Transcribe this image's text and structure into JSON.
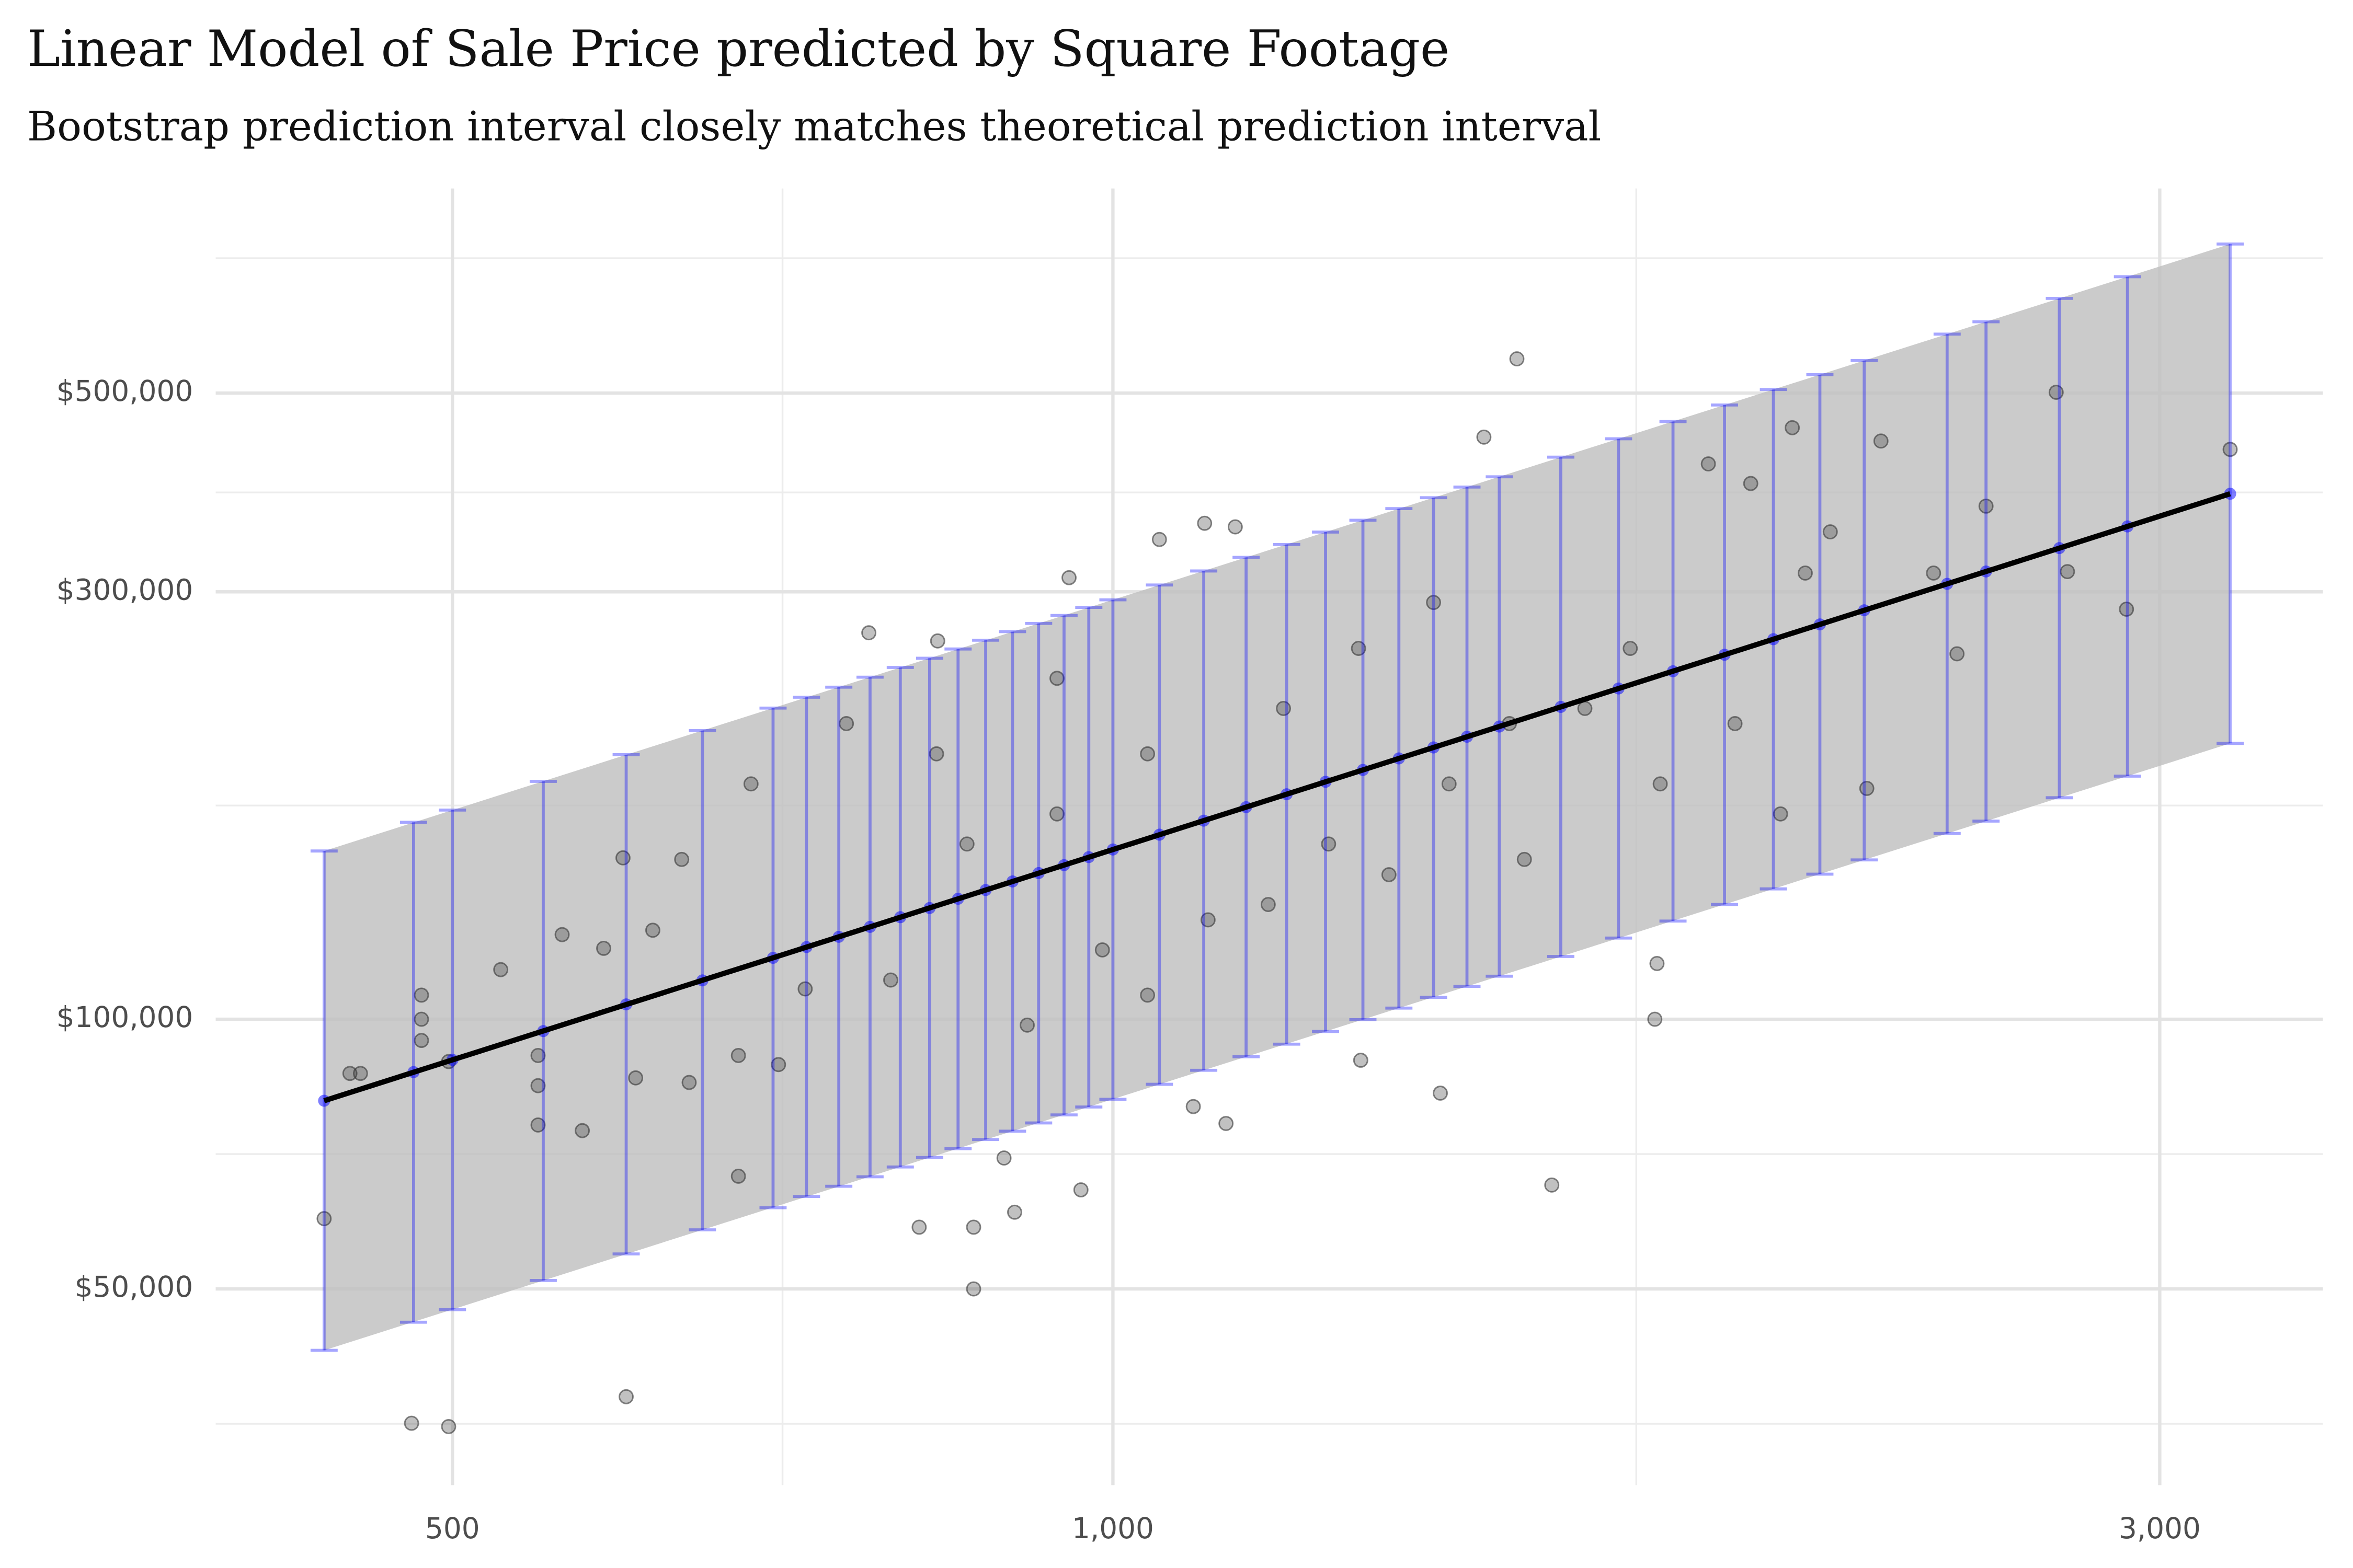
{
  "chart_data": {
    "type": "scatter",
    "title": "Linear Model of Sale Price predicted by Square Footage",
    "subtitle": "Bootstrap prediction interval closely matches theoretical prediction interval",
    "xscale": "log",
    "yscale": "log",
    "grid": true,
    "xlim": [
      390,
      3560
    ],
    "ylim": [
      30200,
      846000
    ],
    "xticks": [
      500,
      {
        "value": 1000,
        "label": "1,000"
      },
      {
        "value": 3000,
        "label": "3,000"
      }
    ],
    "yticks": [
      {
        "value": 50000,
        "label": "$50,000"
      },
      {
        "value": 100000,
        "label": "$100,000"
      },
      {
        "value": 300000,
        "label": "$300,000"
      },
      {
        "value": 500000,
        "label": "$500,000"
      }
    ],
    "xminor": [
      707,
      1732
    ],
    "yminor": [
      35355,
      70711,
      173205,
      387298,
      707107
    ],
    "prediction_band": {
      "color": "#bebebe",
      "x": [
        437,
        3230
      ],
      "lower": [
        42700,
        203200
      ],
      "upper": [
        154100,
        733400
      ]
    },
    "points": {
      "color": "#333333",
      "x": [
        437,
        449,
        454,
        484,
        484,
        484,
        498,
        479,
        498,
        526,
        547,
        547,
        547,
        561,
        573,
        586,
        598,
        606,
        617,
        600,
        636,
        641,
        675,
        675,
        704,
        684,
        724,
        774,
        816,
        832,
        864,
        864,
        892,
        902,
        955,
        967,
        1050,
        1101,
        1137,
        1088,
        1126,
        1297,
        1410,
        1476,
        1528,
        1585,
        1766,
        1770,
        1868,
        1953,
        2040,
        2068,
        2123,
        2206,
        2239,
        2366,
        2425,
        2500,
        2691,
        2723,
        2897,
        3230,
        943,
        1037,
        1196,
        1294,
        1400,
        1516,
        858,
        989,
        1105,
        1254,
        1423,
        1641,
        1721,
        1776,
        792,
        914,
        1037,
        1177,
        1336,
        1540,
        756,
        831,
        943,
        1921,
        2015
      ],
      "y": [
        59900,
        87000,
        87000,
        106400,
        100000,
        94700,
        89700,
        35400,
        35100,
        113600,
        91100,
        76200,
        84300,
        124300,
        75100,
        120000,
        151400,
        86000,
        125700,
        37900,
        150800,
        85000,
        91100,
        66800,
        89000,
        183100,
        108100,
        270000,
        58600,
        264400,
        58600,
        50000,
        70000,
        60900,
        311100,
        64500,
        343200,
        357800,
        354500,
        79900,
        76500,
        90000,
        82700,
        446500,
        546000,
        65300,
        100000,
        115400,
        416800,
        396300,
        457400,
        314800,
        350000,
        181000,
        442000,
        314800,
        255800,
        373900,
        501000,
        316000,
        286900,
        432600,
        240200,
        197800,
        222300,
        259400,
        291900,
        213800,
        156900,
        119500,
        129100,
        156900,
        183100,
        222300,
        259400,
        183100,
        110600,
        98500,
        106400,
        134300,
        145000,
        150800,
        213800,
        197800,
        169500,
        213800,
        169500
      ]
    },
    "bootstrap_intervals": {
      "color": "#0000ff",
      "x": [
        437,
        480,
        500,
        550,
        600,
        650,
        700,
        725,
        750,
        775,
        800,
        825,
        850,
        875,
        900,
        925,
        950,
        975,
        1000,
        1050,
        1100,
        1150,
        1200,
        1250,
        1300,
        1350,
        1400,
        1450,
        1500,
        1600,
        1700,
        1800,
        1900,
        2000,
        2100,
        2200,
        2400,
        2500,
        2700,
        2900,
        3230
      ],
      "fit": [
        81100,
        87300,
        90100,
        97000,
        103900,
        110500,
        117100,
        120400,
        123600,
        126800,
        130000,
        133100,
        136300,
        139400,
        142500,
        145600,
        148600,
        151700,
        154700,
        160700,
        166600,
        172500,
        178300,
        184100,
        189800,
        195500,
        201100,
        206700,
        212200,
        223200,
        234000,
        244600,
        255200,
        265600,
        275900,
        286100,
        306200,
        316100,
        335700,
        354900,
        386000
      ],
      "lower": [
        42700,
        45900,
        47400,
        51100,
        54700,
        58200,
        61600,
        63400,
        65100,
        66700,
        68400,
        70100,
        71700,
        73400,
        75000,
        76600,
        78200,
        79800,
        81400,
        84600,
        87700,
        90800,
        93800,
        96900,
        99900,
        102900,
        105800,
        108800,
        111700,
        117500,
        123200,
        128700,
        134300,
        139800,
        145200,
        150600,
        161200,
        166400,
        176700,
        186800,
        203200
      ],
      "upper": [
        154100,
        165900,
        171200,
        184300,
        197400,
        210000,
        222500,
        228800,
        234800,
        240900,
        247000,
        252900,
        259000,
        264900,
        270800,
        276600,
        282300,
        288200,
        293900,
        305300,
        316500,
        327800,
        338800,
        349800,
        360600,
        371500,
        382100,
        392700,
        403200,
        424100,
        444600,
        464700,
        484900,
        504600,
        524200,
        543600,
        581800,
        600600,
        637800,
        674300,
        733400
      ]
    },
    "fit_line": {
      "color": "#000000",
      "x": [
        437,
        3230
      ],
      "y": [
        81100,
        386000
      ]
    }
  }
}
